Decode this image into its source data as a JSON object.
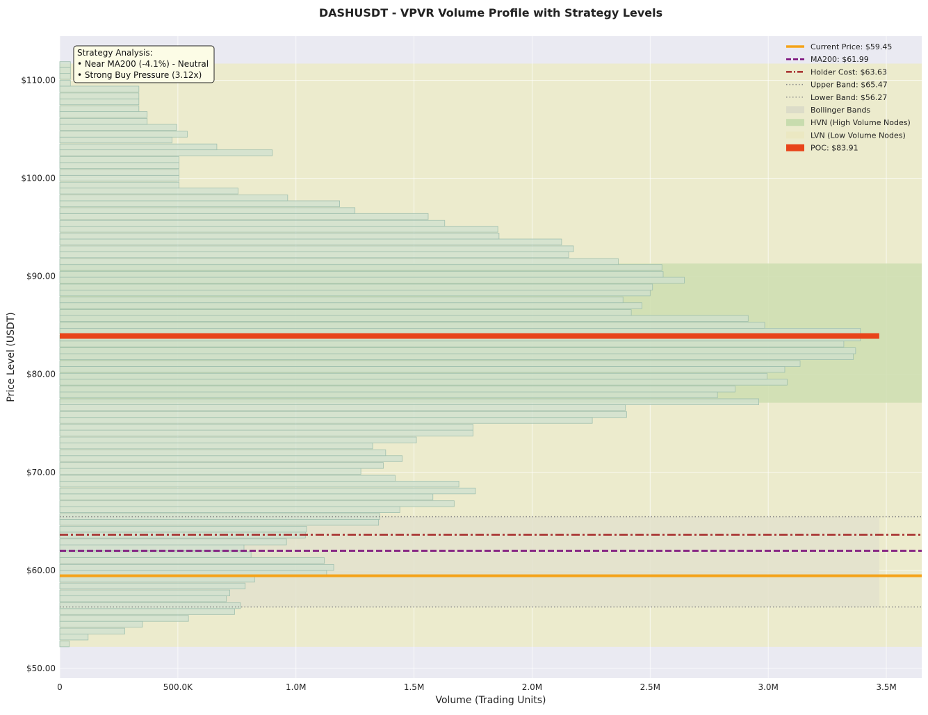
{
  "chart_data": {
    "type": "bar",
    "orientation": "horizontal",
    "title": "DASHUSDT - VPVR Volume Profile with Strategy Levels",
    "xlabel": "Volume (Trading Units)",
    "ylabel": "Price Level (USDT)",
    "xlim": [
      0,
      3650000
    ],
    "ylim": [
      49.0,
      114.5
    ],
    "x_ticks": [
      {
        "value": 0,
        "label": "0"
      },
      {
        "value": 500000,
        "label": "500.0K"
      },
      {
        "value": 1000000,
        "label": "1.0M"
      },
      {
        "value": 1500000,
        "label": "1.5M"
      },
      {
        "value": 2000000,
        "label": "2.0M"
      },
      {
        "value": 2500000,
        "label": "2.5M"
      },
      {
        "value": 3000000,
        "label": "3.0M"
      },
      {
        "value": 3500000,
        "label": "3.5M"
      }
    ],
    "y_ticks": [
      {
        "value": 50,
        "label": "$50.00"
      },
      {
        "value": 60,
        "label": "$60.00"
      },
      {
        "value": 70,
        "label": "$70.00"
      },
      {
        "value": 80,
        "label": "$80.00"
      },
      {
        "value": 90,
        "label": "$90.00"
      },
      {
        "value": 100,
        "label": "$100.00"
      },
      {
        "value": 110,
        "label": "$110.00"
      }
    ],
    "bin_height": 0.6,
    "profile": [
      {
        "price": 52.5,
        "volume": 40000
      },
      {
        "price": 53.2,
        "volume": 120000
      },
      {
        "price": 53.8,
        "volume": 275000
      },
      {
        "price": 54.5,
        "volume": 350000
      },
      {
        "price": 55.1,
        "volume": 545000
      },
      {
        "price": 55.8,
        "volume": 740000
      },
      {
        "price": 56.4,
        "volume": 765000
      },
      {
        "price": 57.1,
        "volume": 705000
      },
      {
        "price": 57.7,
        "volume": 720000
      },
      {
        "price": 58.4,
        "volume": 785000
      },
      {
        "price": 59.1,
        "volume": 825000
      },
      {
        "price": 59.7,
        "volume": 1130000
      },
      {
        "price": 60.3,
        "volume": 1160000
      },
      {
        "price": 61.0,
        "volume": 1120000
      },
      {
        "price": 61.6,
        "volume": 810000
      },
      {
        "price": 62.3,
        "volume": 780000
      },
      {
        "price": 62.9,
        "volume": 960000
      },
      {
        "price": 63.6,
        "volume": 1040000
      },
      {
        "price": 64.2,
        "volume": 1045000
      },
      {
        "price": 64.9,
        "volume": 1350000
      },
      {
        "price": 65.5,
        "volume": 1355000
      },
      {
        "price": 66.2,
        "volume": 1440000
      },
      {
        "price": 66.8,
        "volume": 1670000
      },
      {
        "price": 67.5,
        "volume": 1580000
      },
      {
        "price": 68.1,
        "volume": 1760000
      },
      {
        "price": 68.8,
        "volume": 1690000
      },
      {
        "price": 69.4,
        "volume": 1420000
      },
      {
        "price": 70.1,
        "volume": 1275000
      },
      {
        "price": 70.7,
        "volume": 1370000
      },
      {
        "price": 71.4,
        "volume": 1450000
      },
      {
        "price": 72.0,
        "volume": 1380000
      },
      {
        "price": 72.7,
        "volume": 1325000
      },
      {
        "price": 73.3,
        "volume": 1510000
      },
      {
        "price": 74.0,
        "volume": 1750000
      },
      {
        "price": 74.6,
        "volume": 1750000
      },
      {
        "price": 75.3,
        "volume": 2255000
      },
      {
        "price": 75.9,
        "volume": 2400000
      },
      {
        "price": 76.6,
        "volume": 2395000
      },
      {
        "price": 77.2,
        "volume": 2960000
      },
      {
        "price": 77.9,
        "volume": 2785000
      },
      {
        "price": 78.5,
        "volume": 2860000
      },
      {
        "price": 79.2,
        "volume": 3080000
      },
      {
        "price": 79.8,
        "volume": 2995000
      },
      {
        "price": 80.5,
        "volume": 3070000
      },
      {
        "price": 81.1,
        "volume": 3135000
      },
      {
        "price": 81.8,
        "volume": 3360000
      },
      {
        "price": 82.4,
        "volume": 3370000
      },
      {
        "price": 83.1,
        "volume": 3320000
      },
      {
        "price": 83.7,
        "volume": 3390000
      },
      {
        "price": 84.4,
        "volume": 3390000
      },
      {
        "price": 85.0,
        "volume": 2985000
      },
      {
        "price": 85.7,
        "volume": 2915000
      },
      {
        "price": 86.3,
        "volume": 2420000
      },
      {
        "price": 87.0,
        "volume": 2465000
      },
      {
        "price": 87.6,
        "volume": 2385000
      },
      {
        "price": 88.3,
        "volume": 2500000
      },
      {
        "price": 88.9,
        "volume": 2510000
      },
      {
        "price": 89.6,
        "volume": 2645000
      },
      {
        "price": 90.2,
        "volume": 2555000
      },
      {
        "price": 90.9,
        "volume": 2550000
      },
      {
        "price": 91.5,
        "volume": 2365000
      },
      {
        "price": 92.2,
        "volume": 2155000
      },
      {
        "price": 92.8,
        "volume": 2175000
      },
      {
        "price": 93.5,
        "volume": 2125000
      },
      {
        "price": 94.1,
        "volume": 1860000
      },
      {
        "price": 94.8,
        "volume": 1855000
      },
      {
        "price": 95.4,
        "volume": 1630000
      },
      {
        "price": 96.1,
        "volume": 1560000
      },
      {
        "price": 96.7,
        "volume": 1250000
      },
      {
        "price": 97.4,
        "volume": 1185000
      },
      {
        "price": 98.0,
        "volume": 965000
      },
      {
        "price": 98.7,
        "volume": 755000
      },
      {
        "price": 99.3,
        "volume": 505000
      },
      {
        "price": 100.0,
        "volume": 505000
      },
      {
        "price": 100.6,
        "volume": 505000
      },
      {
        "price": 101.3,
        "volume": 505000
      },
      {
        "price": 101.9,
        "volume": 505000
      },
      {
        "price": 102.6,
        "volume": 900000
      },
      {
        "price": 103.2,
        "volume": 665000
      },
      {
        "price": 103.9,
        "volume": 475000
      },
      {
        "price": 104.5,
        "volume": 540000
      },
      {
        "price": 105.2,
        "volume": 495000
      },
      {
        "price": 105.8,
        "volume": 370000
      },
      {
        "price": 106.5,
        "volume": 370000
      },
      {
        "price": 107.1,
        "volume": 335000
      },
      {
        "price": 107.8,
        "volume": 335000
      },
      {
        "price": 108.4,
        "volume": 335000
      },
      {
        "price": 109.1,
        "volume": 335000
      },
      {
        "price": 109.7,
        "volume": 45000
      },
      {
        "price": 110.4,
        "volume": 45000
      },
      {
        "price": 111.0,
        "volume": 45000
      },
      {
        "price": 111.6,
        "volume": 45000
      }
    ],
    "levels": {
      "current_price": {
        "value": 59.45,
        "label": "Current Price: $59.45",
        "color": "#f5a31a"
      },
      "ma200": {
        "value": 61.99,
        "label": "MA200: $61.99",
        "color": "#7b0f7b"
      },
      "holder_cost": {
        "value": 63.63,
        "label": "Holder Cost: $63.63",
        "color": "#a52a2a"
      },
      "upper_band": {
        "value": 65.47,
        "label": "Upper Band: $65.47",
        "color": "#888888"
      },
      "lower_band": {
        "value": 56.27,
        "label": "Lower Band: $56.27",
        "color": "#888888"
      },
      "poc": {
        "value": 83.91,
        "label": "POC: $83.91",
        "color": "#e8441a"
      }
    },
    "regions": {
      "lvn_range": [
        52.2,
        111.7
      ],
      "hvn_range": [
        77.1,
        91.3
      ],
      "bollinger_range": [
        56.27,
        65.47
      ],
      "bollinger_volume_extent": 3470000,
      "poc_volume_extent": 3470000
    },
    "legend": {
      "position": "top-right",
      "entries": [
        {
          "key": "current_price",
          "label": "Current Price: $59.45"
        },
        {
          "key": "ma200",
          "label": "MA200: $61.99"
        },
        {
          "key": "holder_cost",
          "label": "Holder Cost: $63.63"
        },
        {
          "key": "upper_band",
          "label": "Upper Band: $65.47"
        },
        {
          "key": "lower_band",
          "label": "Lower Band: $56.27"
        },
        {
          "key": "bollinger",
          "label": "Bollinger Bands"
        },
        {
          "key": "hvn",
          "label": "HVN (High Volume Nodes)"
        },
        {
          "key": "lvn",
          "label": "LVN (Low Volume Nodes)"
        },
        {
          "key": "poc",
          "label": "POC: $83.91"
        }
      ]
    },
    "annotation": {
      "position": "top-left",
      "lines": [
        "Strategy Analysis:",
        "• Near MA200 (-4.1%) - Neutral",
        "• Strong Buy Pressure (3.12x)"
      ]
    },
    "colors": {
      "plot_bg": "#eaeaf2",
      "bar_fill": "#cfe0cf",
      "bar_stroke": "#9fbfae",
      "lvn_fill": "#ecebcd",
      "hvn_fill": "#cfdfb3",
      "bollinger_fill": "#e3e2cd",
      "annot_bg": "#fcfce6"
    }
  }
}
